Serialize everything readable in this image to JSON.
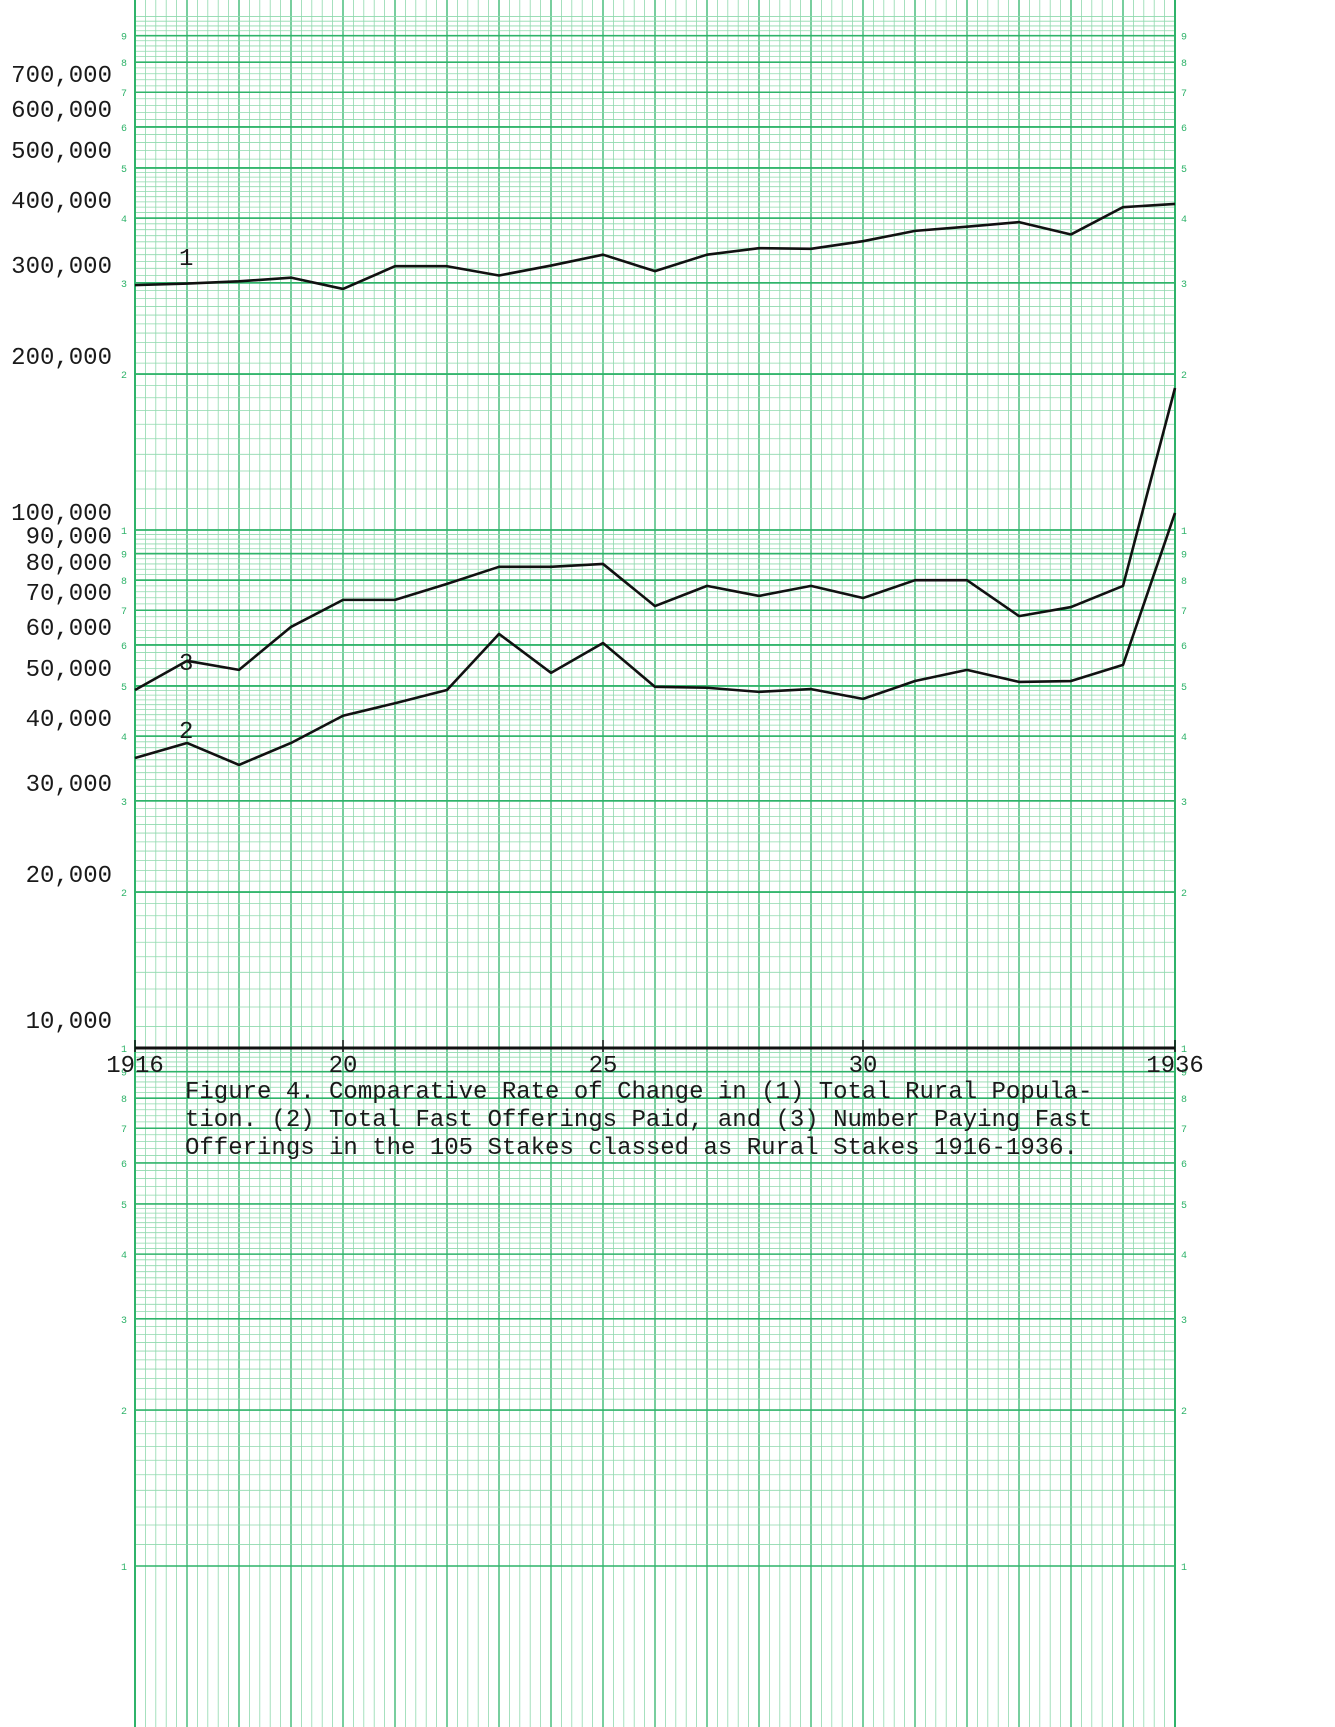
{
  "chart_data": {
    "type": "line",
    "log_scale": true,
    "grid": true,
    "caption": [
      "Figure 4.  Comparative Rate of Change in (1) Total Rural Popula-",
      "tion. (2) Total Fast Offerings Paid, and (3) Number Paying  Fast",
      "Offerings in the 105 Stakes classed as Rural Stakes 1916-1936."
    ],
    "paper_digits": [
      1,
      2,
      3,
      4,
      5,
      6,
      7,
      8,
      9
    ],
    "x": [
      1916,
      1917,
      1918,
      1919,
      1920,
      1921,
      1922,
      1923,
      1924,
      1925,
      1926,
      1927,
      1928,
      1929,
      1930,
      1931,
      1932,
      1933,
      1934,
      1935,
      1936
    ],
    "xlim": [
      1916,
      1936
    ],
    "xticks": [
      1916,
      {
        "value": 1920,
        "label": "20"
      },
      {
        "value": 1925,
        "label": "25"
      },
      {
        "value": 1930,
        "label": "30"
      },
      1936
    ],
    "ylim": [
      10000,
      1000000
    ],
    "yticks": [
      {
        "value": 10000,
        "label": "10,000"
      },
      {
        "value": 20000,
        "label": "20,000"
      },
      {
        "value": 30000,
        "label": "30,000"
      },
      {
        "value": 40000,
        "label": "40,000"
      },
      {
        "value": 50000,
        "label": "50,000"
      },
      {
        "value": 60000,
        "label": "60,000"
      },
      {
        "value": 70000,
        "label": "70,000"
      },
      {
        "value": 80000,
        "label": "80,000"
      },
      {
        "value": 90000,
        "label": "90,000"
      },
      {
        "value": 100000,
        "label": "100,000"
      },
      {
        "value": 200000,
        "label": "200,000"
      },
      {
        "value": 300000,
        "label": "300,000"
      },
      {
        "value": 400000,
        "label": "400,000"
      },
      {
        "value": 500000,
        "label": "500,000"
      },
      {
        "value": 600000,
        "label": "600,000"
      },
      {
        "value": 700000,
        "label": "700,000"
      }
    ],
    "series": [
      {
        "name": "1",
        "color": "#111111",
        "values": [
          297000,
          299000,
          302000,
          307000,
          292000,
          323000,
          323000,
          310000,
          324000,
          340000,
          316000,
          340000,
          350000,
          349000,
          361000,
          378000,
          385000,
          393000,
          372000,
          420000,
          426000
        ]
      },
      {
        "name": "2",
        "color": "#111111",
        "values": [
          36300,
          38800,
          35200,
          38800,
          43800,
          46300,
          49100,
          63000,
          53000,
          60500,
          49800,
          49600,
          48700,
          49300,
          47200,
          51100,
          53700,
          50900,
          51100,
          54900,
          107900
        ]
      },
      {
        "name": "3",
        "color": "#111111",
        "values": [
          49100,
          55900,
          53700,
          65000,
          73300,
          73300,
          78700,
          84900,
          84900,
          86000,
          71300,
          78000,
          74600,
          78000,
          73900,
          80000,
          80000,
          68200,
          71000,
          78000,
          188000
        ]
      }
    ]
  }
}
